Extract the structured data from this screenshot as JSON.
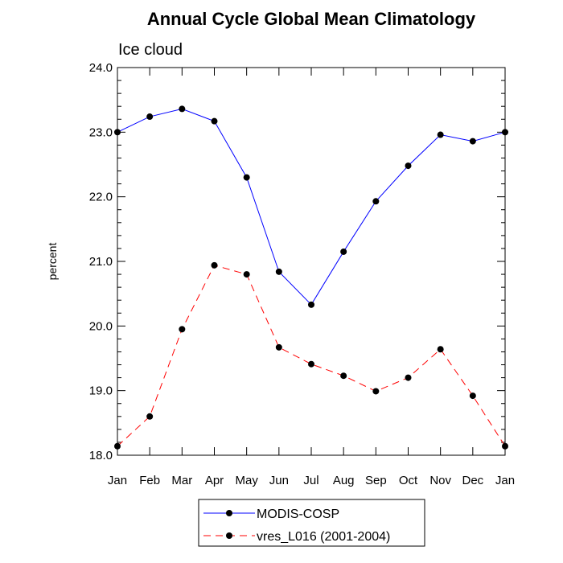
{
  "chart_data": {
    "type": "line",
    "title": "Annual Cycle Global Mean Climatology",
    "subtitle": "Ice cloud",
    "xlabel": "",
    "ylabel": "percent",
    "categories": [
      "Jan",
      "Feb",
      "Mar",
      "Apr",
      "May",
      "Jun",
      "Jul",
      "Aug",
      "Sep",
      "Oct",
      "Nov",
      "Dec",
      "Jan"
    ],
    "ylim": [
      18.0,
      24.0
    ],
    "yticks": [
      "18.0",
      "19.0",
      "20.0",
      "21.0",
      "22.0",
      "23.0",
      "24.0"
    ],
    "grid": false,
    "legend_position": "bottom-center",
    "series": [
      {
        "name": "MODIS-COSP",
        "color": "#0000ff",
        "dash": "solid",
        "values": [
          23.0,
          23.24,
          23.36,
          23.17,
          22.3,
          20.84,
          20.33,
          21.15,
          21.93,
          22.48,
          22.96,
          22.86,
          23.0
        ]
      },
      {
        "name": "vres_L016 (2001-2004)",
        "color": "#ff0000",
        "dash": "dashed",
        "values": [
          18.14,
          18.6,
          19.95,
          20.94,
          20.8,
          19.67,
          19.41,
          19.23,
          18.99,
          19.2,
          19.64,
          18.92,
          18.14
        ]
      }
    ]
  }
}
